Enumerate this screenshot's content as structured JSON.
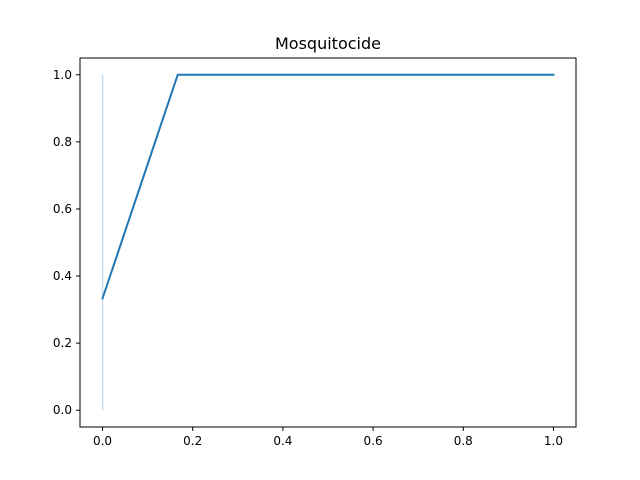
{
  "chart_data": {
    "type": "line",
    "title": "Mosquitocide",
    "xlabel": "",
    "ylabel": "",
    "xlim": [
      -0.05,
      1.05
    ],
    "ylim": [
      -0.05,
      1.05
    ],
    "x_ticks": [
      0.0,
      0.2,
      0.4,
      0.6,
      0.8,
      1.0
    ],
    "x_tick_labels": [
      "0.0",
      "0.2",
      "0.4",
      "0.6",
      "0.8",
      "1.0"
    ],
    "y_ticks": [
      0.0,
      0.2,
      0.4,
      0.6,
      0.8,
      1.0
    ],
    "y_tick_labels": [
      "0.0",
      "0.2",
      "0.4",
      "0.6",
      "0.8",
      "1.0"
    ],
    "grid": false,
    "legend": "none",
    "series": [
      {
        "color": "#1f77b4",
        "x": [
          0.0,
          0.1667,
          1.0
        ],
        "y": [
          0.3333,
          1.0,
          1.0
        ]
      }
    ],
    "vertical_line": {
      "x": 0.0,
      "y_range": [
        0.0,
        1.0
      ],
      "color": "#1f77b4",
      "opacity": 0.25
    }
  }
}
